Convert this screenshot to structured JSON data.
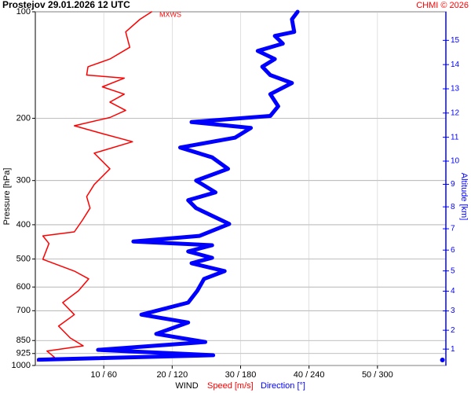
{
  "chart_data": {
    "type": "profile",
    "title": "Prostejov    29.01.2026 12 UTC",
    "source": "CHMI © 2026",
    "annotation": "MXWS",
    "x_label": "WIND",
    "y_label": "Pressure [hPa]",
    "y2_label": "Altitude [km]",
    "log_y": true,
    "grid": true,
    "ylim": [
      1000,
      100
    ],
    "yticks": [
      100,
      200,
      300,
      400,
      500,
      600,
      700,
      850,
      925,
      1000
    ],
    "xlim": [
      0,
      60
    ],
    "x2lim": [
      0,
      360
    ],
    "xticks": [
      {
        "value": 10,
        "label": "10 / 60"
      },
      {
        "value": 20,
        "label": "20 / 120"
      },
      {
        "value": 30,
        "label": "30 / 180"
      },
      {
        "value": 40,
        "label": "40 / 240"
      },
      {
        "value": 50,
        "label": "50 / 300"
      }
    ],
    "y2ticks": [
      1,
      2,
      3,
      4,
      5,
      6,
      7,
      8,
      9,
      10,
      11,
      12,
      13,
      14,
      15
    ],
    "y2color": "#0000ff",
    "series": [
      {
        "name": "Speed [m/s]",
        "color": "#ff0000",
        "axis": "x",
        "pressure": [
          100,
          105,
          114,
          126,
          136,
          143,
          151,
          154,
          163,
          171,
          180,
          190,
          199,
          210,
          221,
          233,
          251,
          278,
          308,
          333,
          359,
          388,
          419,
          430,
          452,
          501,
          541,
          569,
          615,
          664,
          718,
          774,
          836,
          880,
          910,
          948,
          972
        ],
        "values": [
          17.0,
          15.3,
          13.2,
          13.8,
          10.9,
          7.7,
          7.5,
          13.0,
          9.8,
          13.0,
          10.9,
          13.2,
          10.9,
          5.7,
          9.8,
          14.2,
          8.6,
          10.9,
          8.6,
          7.5,
          8.0,
          6.9,
          5.7,
          1.1,
          2.0,
          1.1,
          5.7,
          7.8,
          6.3,
          4.0,
          5.7,
          3.4,
          5.1,
          7.0,
          1.7,
          2.8,
          0.3
        ]
      },
      {
        "name": "Direction [°]",
        "color": "#0000ff",
        "axis": "x2",
        "pressure": [
          100,
          105,
          114,
          117,
          123,
          129,
          136,
          143,
          151,
          159,
          171,
          185,
          197,
          205,
          213,
          227,
          242,
          258,
          278,
          300,
          324,
          341,
          359,
          398,
          430,
          446,
          457,
          476,
          496,
          514,
          541,
          569,
          615,
          664,
          718,
          756,
          814,
          858,
          903,
          935,
          963,
          null,
          965
        ],
        "values": [
          230,
          225,
          227,
          210,
          217,
          195,
          210,
          199,
          206,
          225,
          206,
          213,
          206,
          137,
          189,
          175,
          127,
          155,
          169,
          141,
          158,
          134,
          141,
          170,
          144,
          86,
          155,
          134,
          155,
          137,
          166,
          148,
          142,
          134,
          93,
          134,
          106,
          149,
          55,
          156,
          3,
          null,
          357
        ]
      }
    ]
  }
}
